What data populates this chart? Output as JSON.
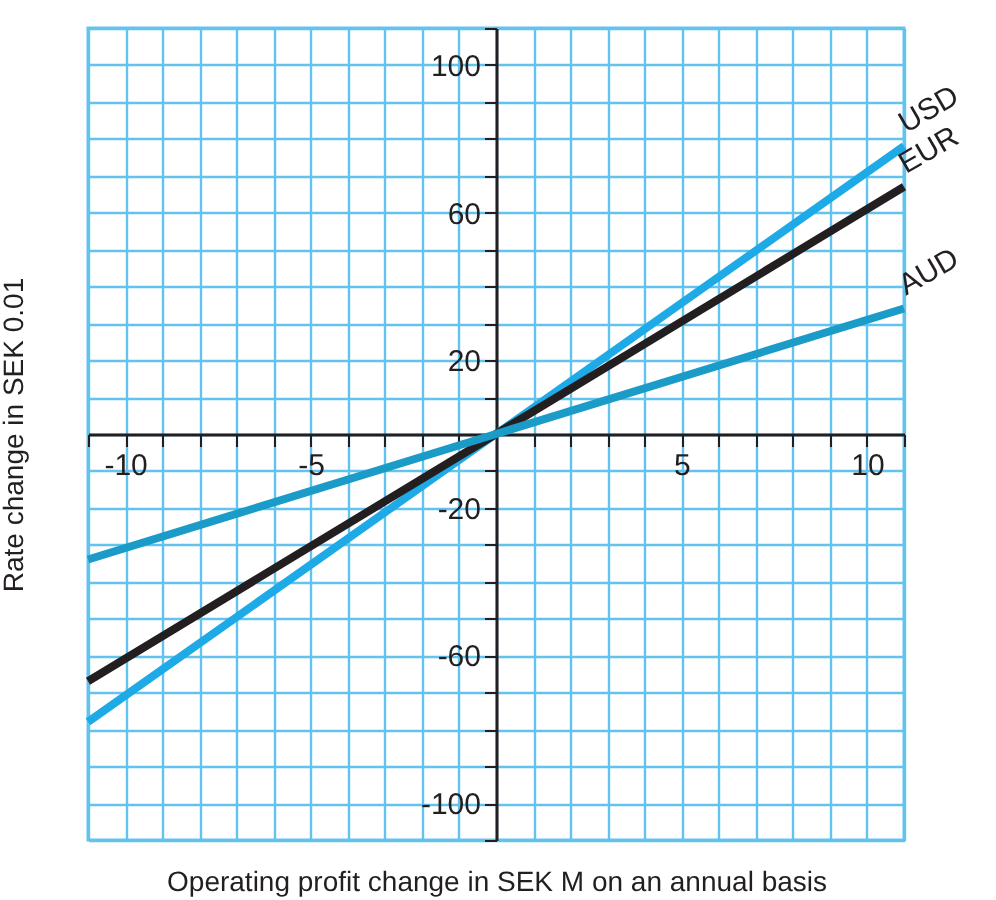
{
  "chart_data": {
    "type": "line",
    "xlabel": "Operating profit change in SEK M on an annual basis",
    "ylabel": "Rate change in SEK 0.01",
    "x": [
      -11,
      0,
      11
    ],
    "series": [
      {
        "name": "USD",
        "color": "#1eaae6",
        "values": [
          -78,
          0,
          78
        ]
      },
      {
        "name": "EUR",
        "color": "#231f20",
        "values": [
          -67,
          0,
          67
        ]
      },
      {
        "name": "AUD",
        "color": "#1a9bc8",
        "values": [
          -34,
          0,
          34
        ]
      }
    ],
    "xlim": [
      -11,
      11
    ],
    "xticks": [
      {
        "value": -11,
        "label": null
      },
      -10,
      {
        "value": -9,
        "label": null
      },
      {
        "value": -8,
        "label": null
      },
      {
        "value": -7,
        "label": null
      },
      {
        "value": -6,
        "label": null
      },
      -5,
      {
        "value": -4,
        "label": null
      },
      {
        "value": -3,
        "label": null
      },
      {
        "value": -2,
        "label": null
      },
      {
        "value": -1,
        "label": null
      },
      {
        "value": 0,
        "label": null
      },
      {
        "value": 1,
        "label": null
      },
      {
        "value": 2,
        "label": null
      },
      {
        "value": 3,
        "label": null
      },
      {
        "value": 4,
        "label": null
      },
      5,
      {
        "value": 6,
        "label": null
      },
      {
        "value": 7,
        "label": null
      },
      {
        "value": 8,
        "label": null
      },
      {
        "value": 9,
        "label": null
      },
      10,
      {
        "value": 11,
        "label": null
      }
    ],
    "ylim": [
      -110,
      110
    ],
    "yticks": [
      {
        "value": -110,
        "label": null
      },
      -100,
      {
        "value": -90,
        "label": null
      },
      {
        "value": -80,
        "label": null
      },
      {
        "value": -70,
        "label": null
      },
      -60,
      {
        "value": -50,
        "label": null
      },
      {
        "value": -40,
        "label": null
      },
      {
        "value": -30,
        "label": null
      },
      -20,
      {
        "value": -10,
        "label": null
      },
      {
        "value": 0,
        "label": null
      },
      {
        "value": 10,
        "label": null
      },
      20,
      {
        "value": 30,
        "label": null
      },
      {
        "value": 40,
        "label": null
      },
      {
        "value": 50,
        "label": null
      },
      60,
      {
        "value": 70,
        "label": null
      },
      {
        "value": 80,
        "label": null
      },
      {
        "value": 90,
        "label": null
      },
      100,
      {
        "value": 110,
        "label": null
      }
    ],
    "grid": true
  }
}
